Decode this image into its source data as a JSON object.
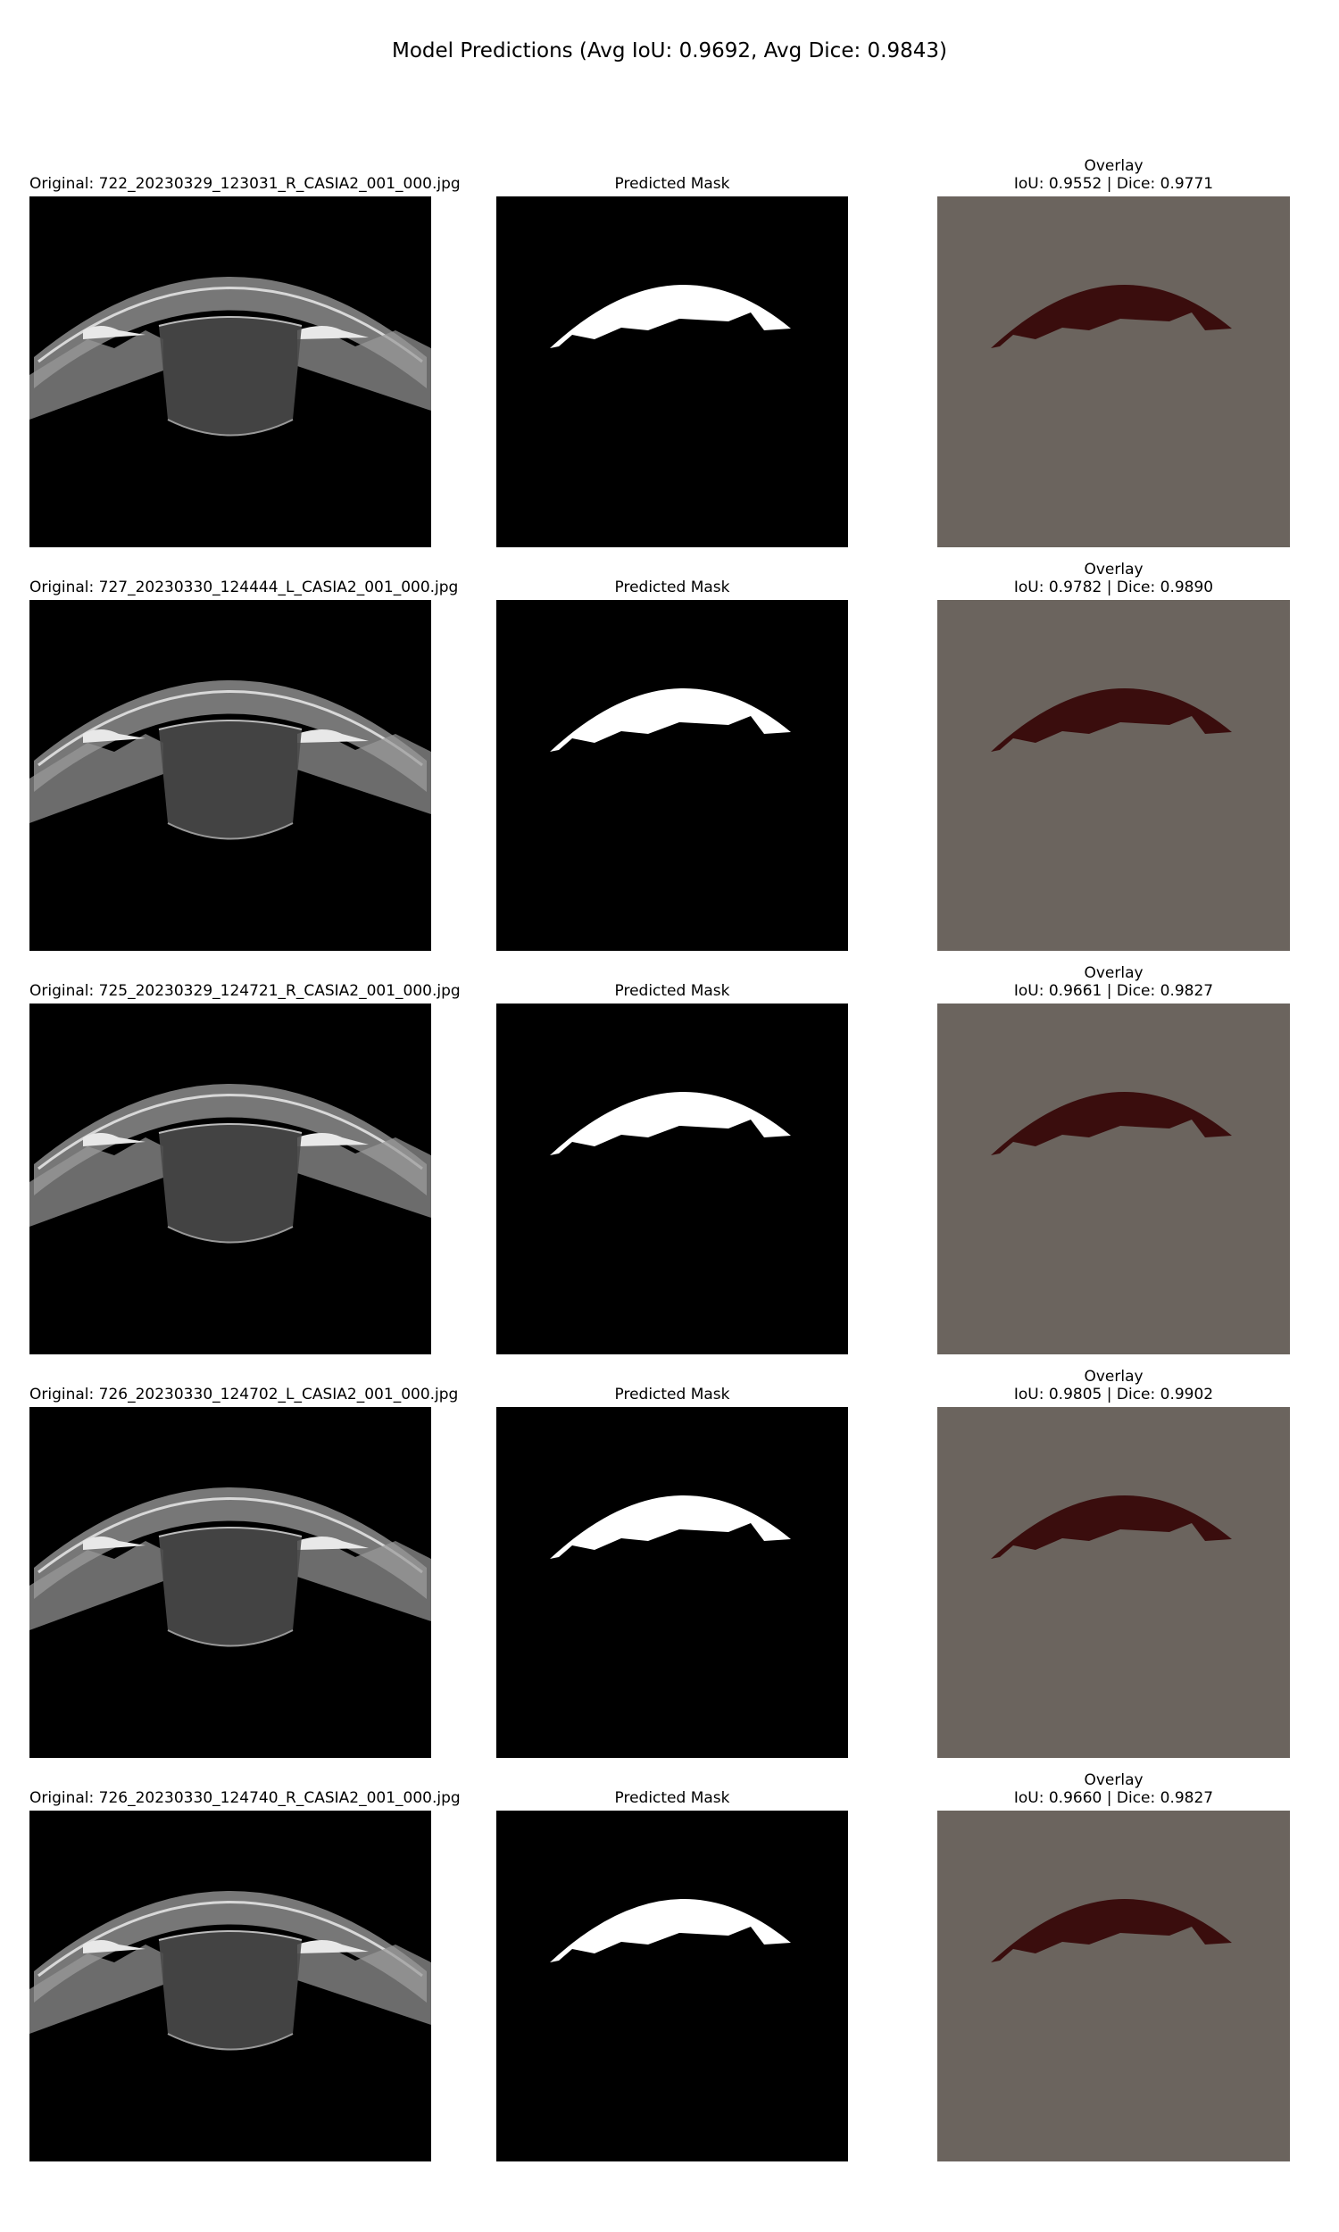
{
  "figure_title": "Model Predictions (Avg IoU: 0.9692, Avg Dice: 0.9843)",
  "colors": {
    "background": "#000000",
    "mask": "#ffffff",
    "overlay_gray": "#6b645e",
    "overlay_mask": "#3a0d0d"
  },
  "rows": [
    {
      "original_title": "Original: 722_20230329_123031_R_CASIA2_001_000.jpg",
      "mask_title": "Predicted Mask",
      "overlay_title": "Overlay",
      "overlay_metrics": "IoU: 0.9552 | Dice: 0.9771"
    },
    {
      "original_title": "Original: 727_20230330_124444_L_CASIA2_001_000.jpg",
      "mask_title": "Predicted Mask",
      "overlay_title": "Overlay",
      "overlay_metrics": "IoU: 0.9782 | Dice: 0.9890"
    },
    {
      "original_title": "Original: 725_20230329_124721_R_CASIA2_001_000.jpg",
      "mask_title": "Predicted Mask",
      "overlay_title": "Overlay",
      "overlay_metrics": "IoU: 0.9661 | Dice: 0.9827"
    },
    {
      "original_title": "Original: 726_20230330_124702_L_CASIA2_001_000.jpg",
      "mask_title": "Predicted Mask",
      "overlay_title": "Overlay",
      "overlay_metrics": "IoU: 0.9805 | Dice: 0.9902"
    },
    {
      "original_title": "Original: 726_20230330_124740_R_CASIA2_001_000.jpg",
      "mask_title": "Predicted Mask",
      "overlay_title": "Overlay",
      "overlay_metrics": "IoU: 0.9660 | Dice: 0.9827"
    }
  ]
}
